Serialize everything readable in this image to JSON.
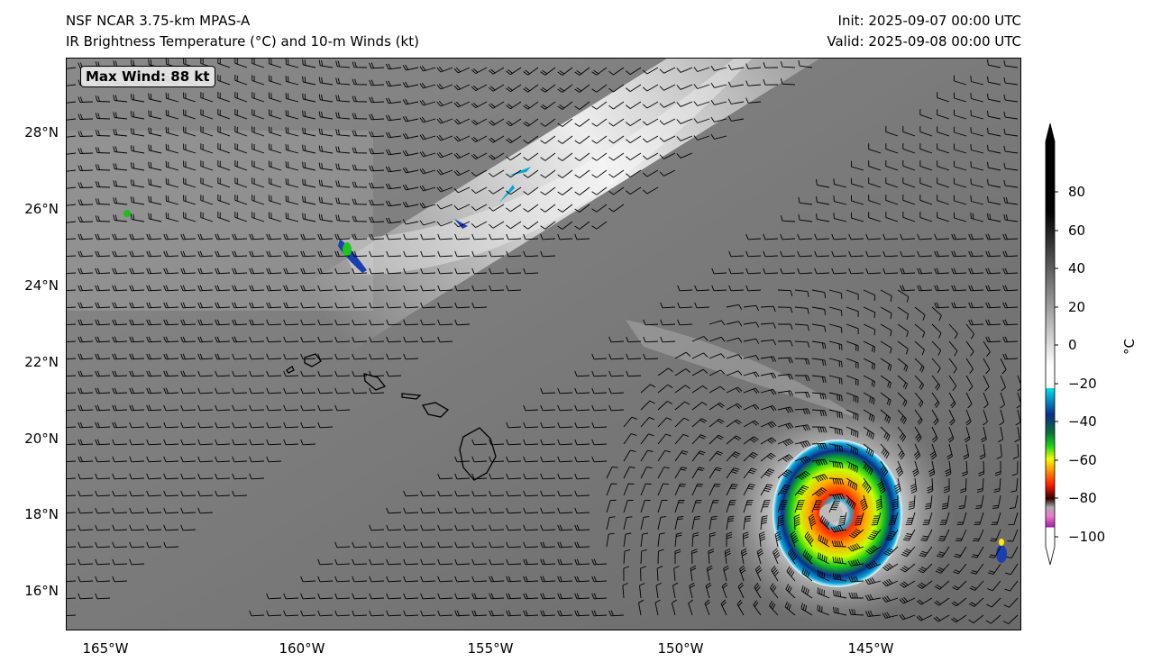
{
  "header": {
    "title_left_1": "NSF NCAR 3.75-km MPAS-A",
    "title_left_2": "IR Brightness Temperature (°C) and 10-m Winds (kt)",
    "title_right_1": "Init: 2025-09-07 00:00 UTC",
    "title_right_2": "Valid: 2025-09-08 00:00 UTC"
  },
  "annotation": {
    "max_wind": "Max Wind: 88 kt"
  },
  "axes": {
    "lat_ticks": [
      "28°N",
      "26°N",
      "24°N",
      "22°N",
      "20°N",
      "18°N",
      "16°N"
    ],
    "lat_values": [
      28,
      26,
      24,
      22,
      20,
      18,
      16
    ],
    "lon_ticks": [
      "165°W",
      "160°W",
      "155°W",
      "150°W",
      "145°W"
    ],
    "lon_values": [
      -165,
      -160,
      -155,
      -150,
      -145
    ],
    "extent": {
      "lon": [
        -166,
        -141
      ],
      "lat": [
        15,
        30
      ]
    }
  },
  "colorbar": {
    "unit": "°C",
    "ticks": [
      "80",
      "60",
      "40",
      "20",
      "0",
      "−20",
      "−40",
      "−60",
      "−80",
      "−100"
    ],
    "tick_values": [
      80,
      60,
      40,
      20,
      0,
      -20,
      -40,
      -60,
      -80,
      -100
    ],
    "range": [
      -105,
      106
    ]
  },
  "storm": {
    "lon": -145.4,
    "lat": 18.5
  }
}
